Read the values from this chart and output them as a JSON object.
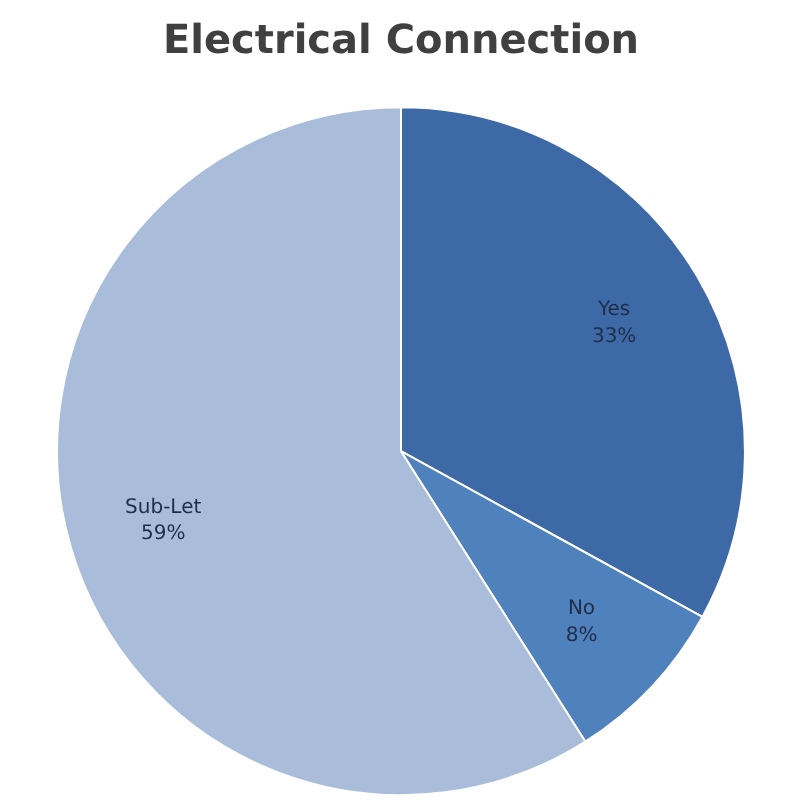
{
  "chart_data": {
    "type": "pie",
    "title": "Electrical Connection",
    "categories": [
      "Yes",
      "No",
      "Sub-Let"
    ],
    "values": [
      33,
      8,
      59
    ],
    "colors": [
      "#3d6aa6",
      "#4f81bd",
      "#a9bcd9"
    ],
    "value_labels": [
      "33%",
      "8%",
      "59%"
    ]
  }
}
